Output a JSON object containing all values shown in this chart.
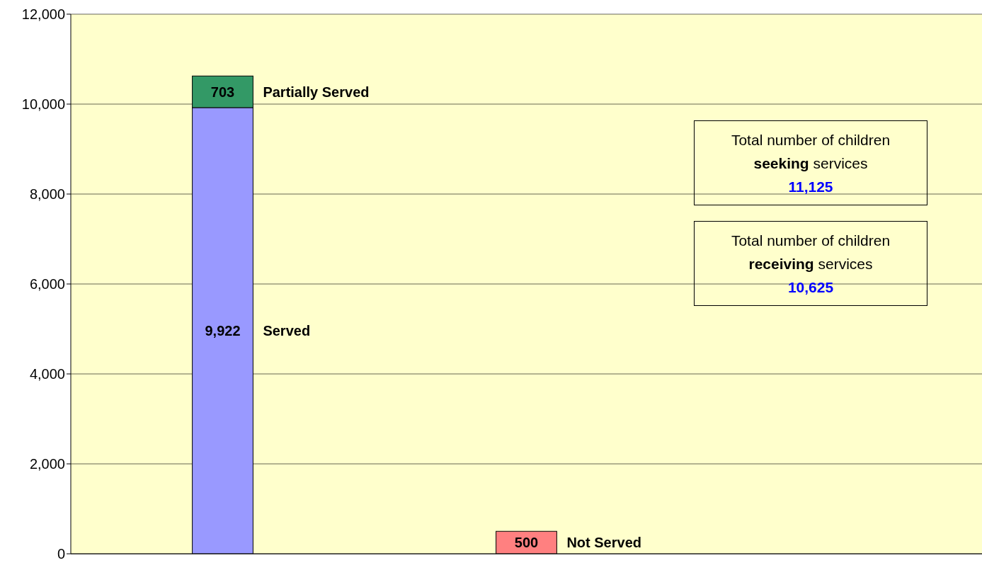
{
  "chart_data": {
    "type": "bar",
    "stacked": true,
    "categories": [
      null,
      null,
      null
    ],
    "series": [
      {
        "name": "Served",
        "color": "#9999ff",
        "values": [
          9922,
          null,
          null
        ],
        "value_labels": [
          "9,922",
          null,
          null
        ]
      },
      {
        "name": "Partially Served",
        "color": "#339966",
        "values": [
          703,
          null,
          null
        ],
        "value_labels": [
          "703",
          null,
          null
        ]
      },
      {
        "name": "Not Served",
        "color": "#ff8080",
        "values": [
          null,
          500,
          null
        ],
        "value_labels": [
          null,
          "500",
          null
        ]
      }
    ],
    "ylim": [
      0,
      12000
    ],
    "yticks": [
      {
        "value": 0,
        "label": "0"
      },
      {
        "value": 2000,
        "label": "2,000"
      },
      {
        "value": 4000,
        "label": "4,000"
      },
      {
        "value": 6000,
        "label": "6,000"
      },
      {
        "value": 8000,
        "label": "8,000"
      },
      {
        "value": 10000,
        "label": "10,000"
      },
      {
        "value": 12000,
        "label": "12,000"
      }
    ],
    "grid": "y",
    "annotations": [
      "Total number of children\nseeking services\n11,125",
      "Total number of children\nreceiving services\n10,625"
    ]
  }
}
